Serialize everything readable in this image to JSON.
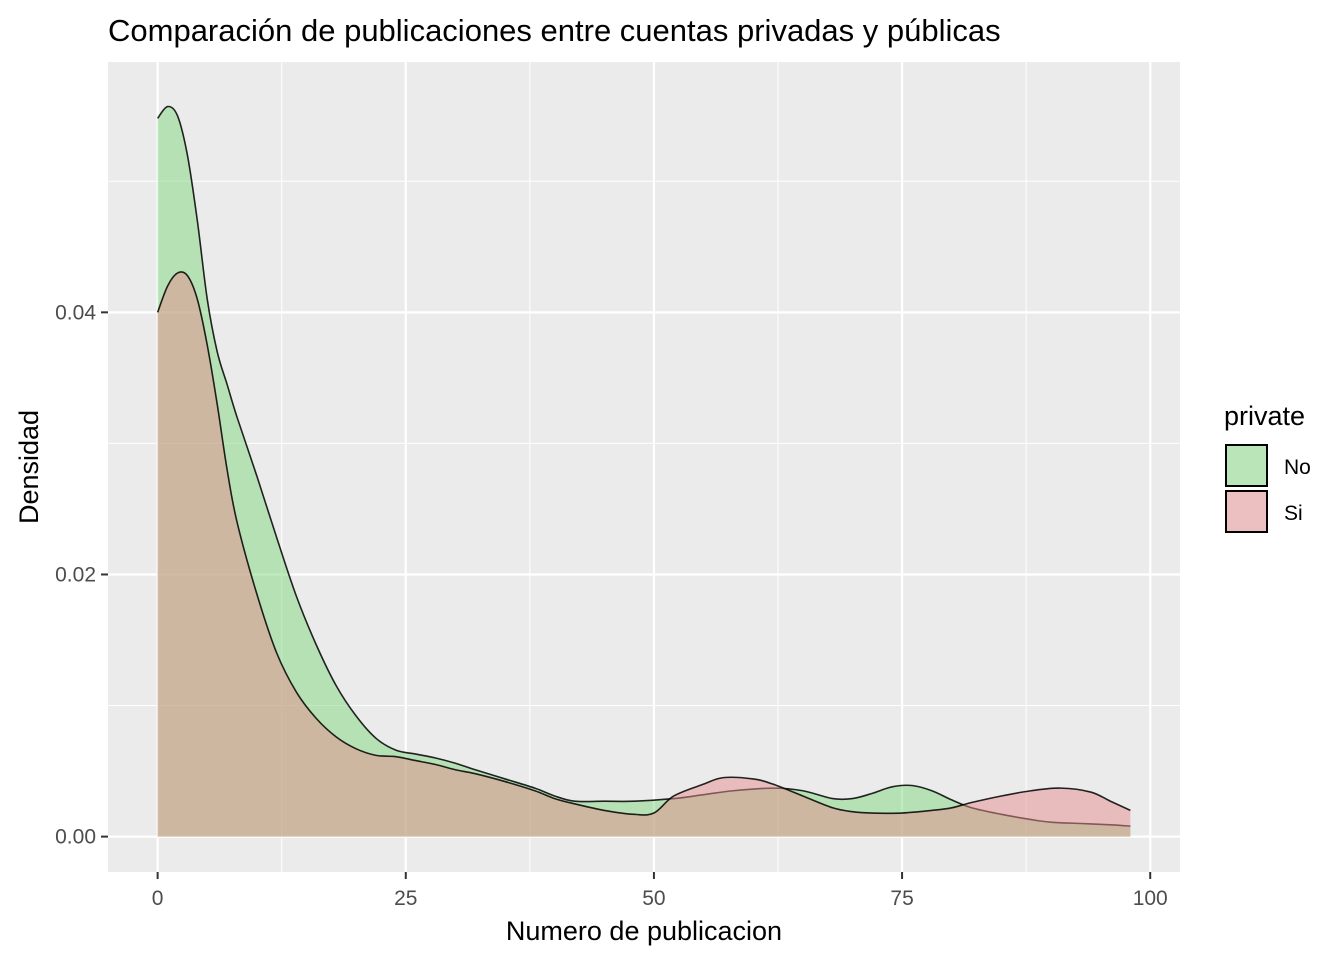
{
  "chart_data": {
    "type": "area",
    "title": "Comparación de publicaciones entre cuentas privadas y públicas",
    "xlabel": "Numero de publicacion",
    "ylabel": "Densidad",
    "xlim": [
      -5,
      103
    ],
    "ylim": [
      -0.0027,
      0.0591
    ],
    "x_ticks": [
      0,
      25,
      50,
      75,
      100
    ],
    "x_tick_labels": [
      "0",
      "25",
      "50",
      "75",
      "100"
    ],
    "y_ticks": [
      0.0,
      0.02,
      0.04
    ],
    "y_tick_labels": [
      "0.00",
      "0.02",
      "0.04"
    ],
    "grid": true,
    "legend": {
      "title": "private",
      "position": "right"
    },
    "series": [
      {
        "name": "No",
        "color": "#7FD77F",
        "points": [
          [
            0,
            0.0548
          ],
          [
            1,
            0.0557
          ],
          [
            2,
            0.055
          ],
          [
            3,
            0.052
          ],
          [
            4,
            0.047
          ],
          [
            5,
            0.041
          ],
          [
            6,
            0.037
          ],
          [
            7,
            0.0345
          ],
          [
            8,
            0.032
          ],
          [
            10,
            0.0275
          ],
          [
            12,
            0.0228
          ],
          [
            14,
            0.0183
          ],
          [
            16,
            0.0146
          ],
          [
            18,
            0.0115
          ],
          [
            20,
            0.0092
          ],
          [
            22,
            0.0075
          ],
          [
            24,
            0.0066
          ],
          [
            26,
            0.0063
          ],
          [
            28,
            0.006
          ],
          [
            30,
            0.0056
          ],
          [
            32,
            0.0051
          ],
          [
            35,
            0.0044
          ],
          [
            38,
            0.0037
          ],
          [
            40,
            0.0031
          ],
          [
            42,
            0.0027
          ],
          [
            45,
            0.0027
          ],
          [
            48,
            0.0027
          ],
          [
            52,
            0.0029
          ],
          [
            55,
            0.0032
          ],
          [
            58,
            0.0035
          ],
          [
            62,
            0.0037
          ],
          [
            65,
            0.0035
          ],
          [
            68,
            0.0029
          ],
          [
            70,
            0.0029
          ],
          [
            72,
            0.0033
          ],
          [
            74,
            0.0038
          ],
          [
            76,
            0.0039
          ],
          [
            78,
            0.0035
          ],
          [
            80,
            0.0028
          ],
          [
            82,
            0.0022
          ],
          [
            85,
            0.0017
          ],
          [
            88,
            0.0013
          ],
          [
            90,
            0.0011
          ],
          [
            93,
            0.001
          ],
          [
            96,
            0.0009
          ],
          [
            98,
            0.0008
          ]
        ]
      },
      {
        "name": "Si",
        "color": "#E58D8D",
        "points": [
          [
            0,
            0.04
          ],
          [
            1,
            0.042
          ],
          [
            2,
            0.043
          ],
          [
            3,
            0.0428
          ],
          [
            4,
            0.041
          ],
          [
            5,
            0.0375
          ],
          [
            6,
            0.033
          ],
          [
            7,
            0.028
          ],
          [
            8,
            0.024
          ],
          [
            10,
            0.0185
          ],
          [
            12,
            0.014
          ],
          [
            14,
            0.011
          ],
          [
            16,
            0.009
          ],
          [
            18,
            0.0076
          ],
          [
            20,
            0.0067
          ],
          [
            22,
            0.0062
          ],
          [
            24,
            0.0061
          ],
          [
            26,
            0.0058
          ],
          [
            28,
            0.0055
          ],
          [
            30,
            0.0051
          ],
          [
            32,
            0.0048
          ],
          [
            35,
            0.0042
          ],
          [
            38,
            0.0035
          ],
          [
            40,
            0.0029
          ],
          [
            42,
            0.0025
          ],
          [
            45,
            0.002
          ],
          [
            48,
            0.0017
          ],
          [
            50,
            0.0018
          ],
          [
            52,
            0.0031
          ],
          [
            55,
            0.004
          ],
          [
            57,
            0.0045
          ],
          [
            60,
            0.0044
          ],
          [
            62,
            0.004
          ],
          [
            65,
            0.0031
          ],
          [
            68,
            0.0022
          ],
          [
            70,
            0.0019
          ],
          [
            72,
            0.0018
          ],
          [
            75,
            0.0018
          ],
          [
            78,
            0.002
          ],
          [
            80,
            0.0022
          ],
          [
            82,
            0.0026
          ],
          [
            85,
            0.0031
          ],
          [
            88,
            0.0035
          ],
          [
            91,
            0.0037
          ],
          [
            94,
            0.0034
          ],
          [
            96,
            0.0027
          ],
          [
            98,
            0.002
          ]
        ]
      }
    ]
  }
}
